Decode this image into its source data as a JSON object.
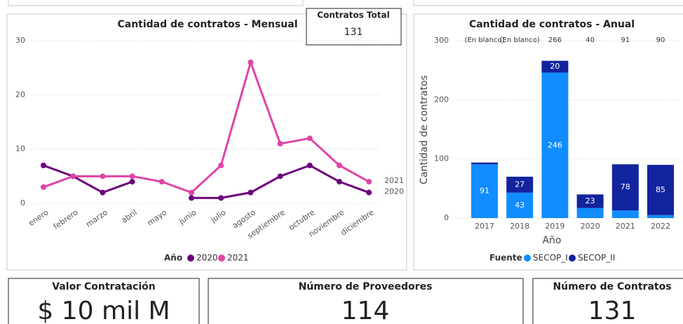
{
  "chart_data": [
    {
      "type": "line",
      "title": "Cantidad de contratos - Mensual",
      "categories": [
        "enero",
        "febrero",
        "marzo",
        "abril",
        "mayo",
        "junio",
        "julio",
        "agosto",
        "septiembre",
        "octubre",
        "noviembre",
        "diciembre"
      ],
      "series": [
        {
          "name": "2020",
          "color": "#6b007b",
          "values": [
            7,
            5,
            2,
            4,
            null,
            1,
            1,
            2,
            5,
            7,
            4,
            2
          ]
        },
        {
          "name": "2021",
          "color": "#e044a7",
          "values": [
            3,
            5,
            5,
            5,
            4,
            2,
            7,
            26,
            11,
            12,
            7,
            4
          ]
        }
      ],
      "ylim": [
        0,
        30
      ],
      "yticks": [
        0,
        10,
        20,
        30
      ],
      "grid": true,
      "legend_title": "Año"
    },
    {
      "type": "stacked_bar",
      "title": "Cantidad de contratos - Anual",
      "categories": [
        "2017",
        "2018",
        "2019",
        "2020",
        "2021",
        "2022"
      ],
      "series": [
        {
          "name": "SECOP_I",
          "color": "#118dff",
          "values": [
            91,
            43,
            246,
            17,
            13,
            5
          ],
          "value_labels": [
            91,
            43,
            246,
            null,
            null,
            null
          ]
        },
        {
          "name": "SECOP_II",
          "color": "#12239e",
          "values": [
            3,
            27,
            20,
            23,
            78,
            85
          ],
          "value_labels": [
            null,
            27,
            20,
            23,
            78,
            85
          ]
        }
      ],
      "total_labels": [
        "(En blanco)",
        "(En blanco)",
        "266",
        "40",
        "91",
        "90"
      ],
      "ylim": [
        0,
        300
      ],
      "yticks": [
        0,
        100,
        200,
        300
      ],
      "grid": true,
      "ylabel": "Cantidad de contratos",
      "xlabel": "Año",
      "legend_title": "Fuente"
    }
  ],
  "cards": [
    {
      "title": "Contratos Total",
      "value": 131
    },
    {
      "title": "Valor Contratación",
      "value": "$ 10 mil M"
    },
    {
      "title": "Número de Proveedores",
      "value": 114
    },
    {
      "title": "Número de Contratos",
      "value": 131
    }
  ]
}
